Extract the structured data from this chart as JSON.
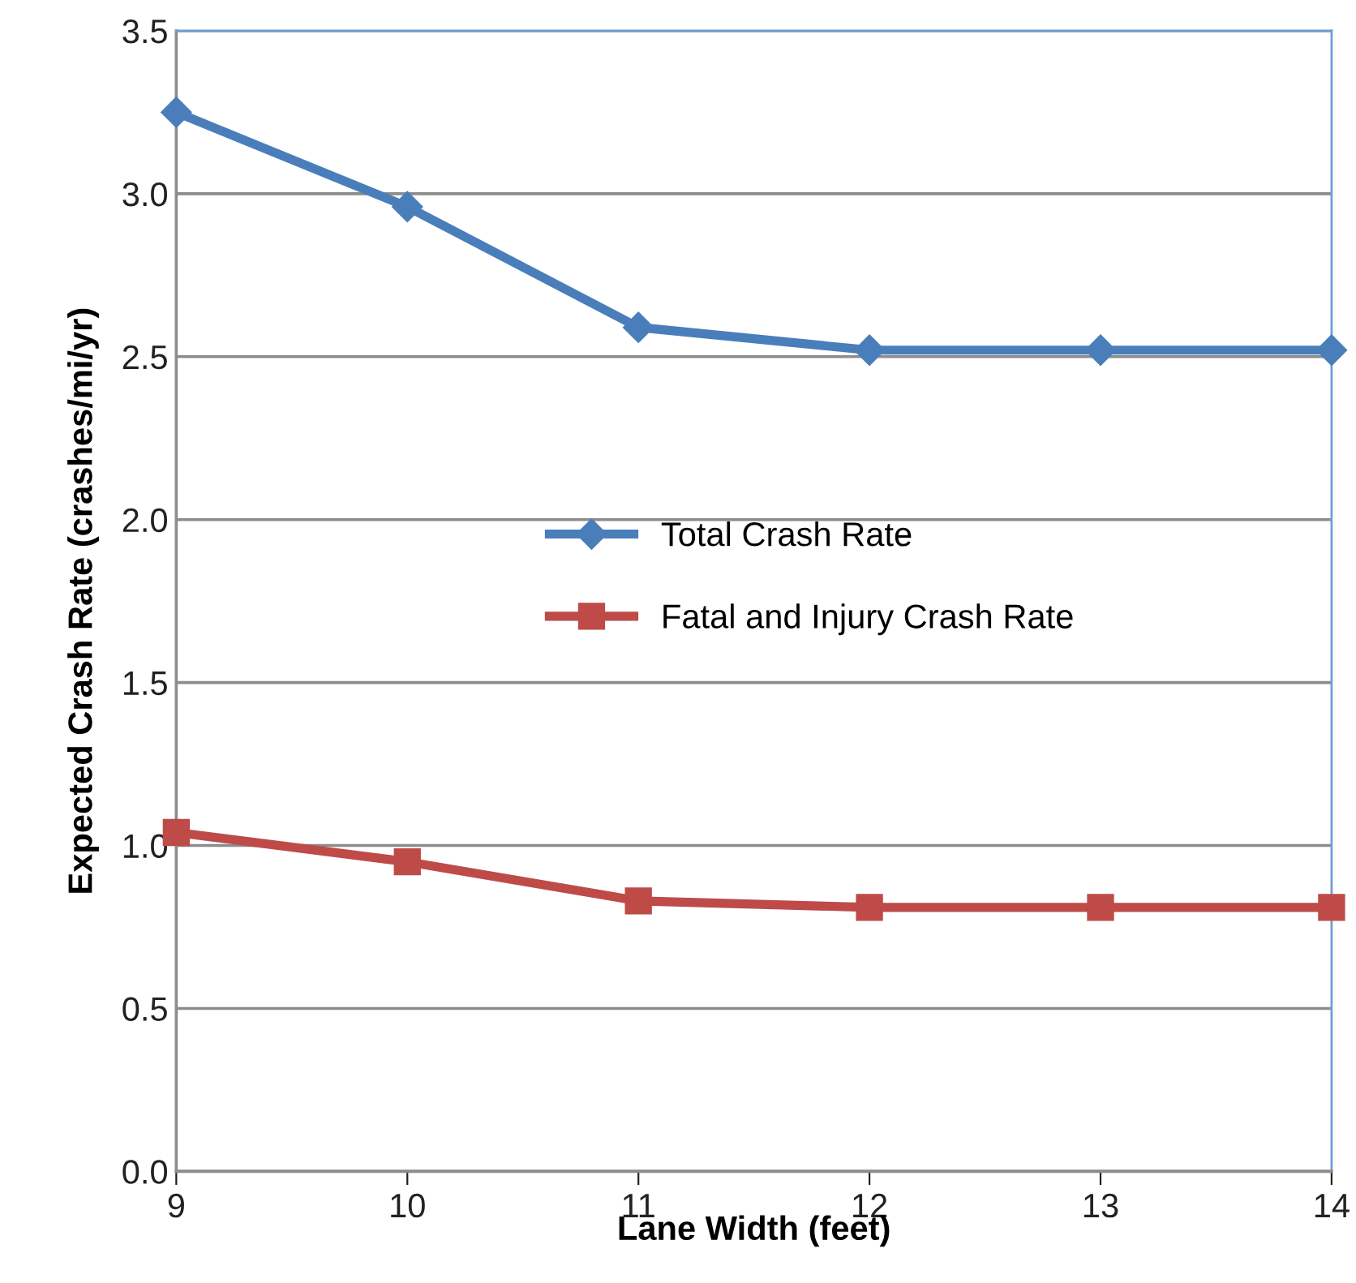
{
  "chart_data": {
    "type": "line",
    "xlabel": "Lane Width (feet)",
    "ylabel": "Expected Crash Rate (crashes/mi/yr)",
    "x": [
      9,
      10,
      11,
      12,
      13,
      14
    ],
    "series": [
      {
        "name": "Total Crash Rate",
        "color": "#4a7ebb",
        "marker": "diamond",
        "values": [
          3.25,
          2.96,
          2.59,
          2.52,
          2.52,
          2.52
        ]
      },
      {
        "name": "Fatal and Injury Crash Rate",
        "color": "#be4b48",
        "marker": "square",
        "values": [
          1.04,
          0.95,
          0.83,
          0.81,
          0.81,
          0.81
        ]
      }
    ],
    "xlim": [
      9,
      14
    ],
    "xticks": [
      9,
      10,
      11,
      12,
      13,
      14
    ],
    "ylim": [
      0,
      3.5
    ],
    "yticks": [
      {
        "value": 0,
        "label": "0.0"
      },
      0.5,
      {
        "value": 1,
        "label": "1.0"
      },
      1.5,
      {
        "value": 2,
        "label": "2.0"
      },
      2.5,
      {
        "value": 3,
        "label": "3.0"
      },
      3.5
    ],
    "grid": "y",
    "legend": "center",
    "line_style": "solid"
  }
}
